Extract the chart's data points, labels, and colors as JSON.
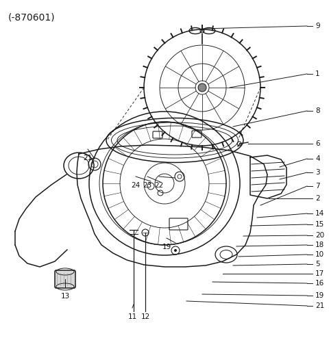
{
  "title": "(-870601)",
  "bg_color": "#ffffff",
  "line_color": "#1a1a1a",
  "label_color": "#111111",
  "font_size_title": 10,
  "font_size_label": 7.5,
  "right_labels": [
    [
      "9",
      460,
      38
    ],
    [
      "1",
      460,
      108
    ],
    [
      "8",
      460,
      162
    ],
    [
      "6",
      460,
      210
    ],
    [
      "4",
      460,
      232
    ],
    [
      "3",
      460,
      252
    ],
    [
      "2",
      460,
      290
    ],
    [
      "7",
      460,
      272
    ],
    [
      "14",
      460,
      312
    ],
    [
      "15",
      460,
      328
    ],
    [
      "20",
      460,
      344
    ],
    [
      "18",
      460,
      358
    ],
    [
      "10",
      460,
      372
    ],
    [
      "5",
      460,
      386
    ],
    [
      "17",
      460,
      400
    ],
    [
      "16",
      460,
      414
    ],
    [
      "19",
      460,
      432
    ],
    [
      "21",
      460,
      447
    ]
  ],
  "left_labels": [
    [
      "21",
      128,
      218
    ],
    [
      "24",
      198,
      258
    ],
    [
      "23",
      215,
      258
    ],
    [
      "22",
      232,
      258
    ],
    [
      "19",
      240,
      348
    ],
    [
      "13",
      95,
      420
    ],
    [
      "11",
      193,
      450
    ],
    [
      "12",
      212,
      450
    ]
  ]
}
